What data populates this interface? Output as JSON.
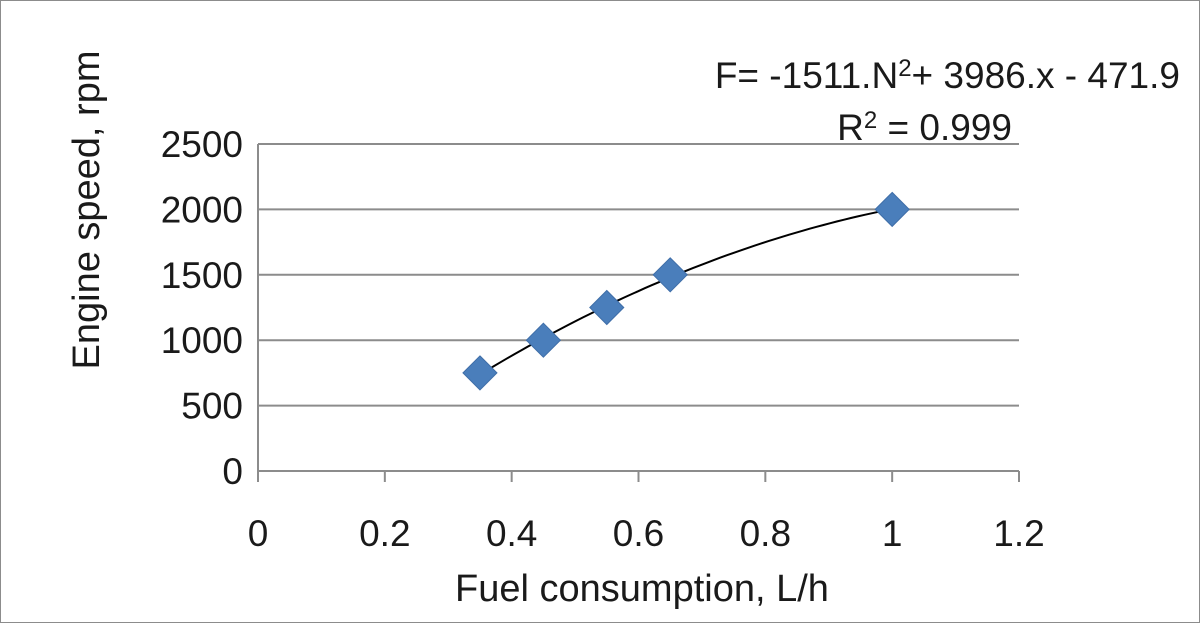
{
  "chart_data": {
    "type": "scatter",
    "xlabel": "Fuel consumption, L/h",
    "ylabel": "Engine speed, rpm",
    "xlim": [
      0,
      1.2
    ],
    "ylim": [
      0,
      2500
    ],
    "x_ticks": [
      "0",
      "0.2",
      "0.4",
      "0.6",
      "0.8",
      "1",
      "1.2"
    ],
    "y_ticks": [
      "0",
      "500",
      "1000",
      "1500",
      "2000",
      "2500"
    ],
    "grid": "horizontal",
    "series": [
      {
        "marker": "diamond",
        "color": "#4a7ebb",
        "points": [
          {
            "x": 0.35,
            "y": 750
          },
          {
            "x": 0.45,
            "y": 1000
          },
          {
            "x": 0.55,
            "y": 1250
          },
          {
            "x": 0.65,
            "y": 1500
          },
          {
            "x": 1.0,
            "y": 2000
          }
        ]
      }
    ],
    "trendline": {
      "type": "polynomial",
      "order": 2,
      "coefficients": [
        -1511,
        3986,
        -471.9
      ],
      "x_range": [
        0.35,
        1.0
      ],
      "color": "#000000"
    },
    "annotations": {
      "equation_prefix": "F= -1511.N",
      "equation_sup": "2",
      "equation_suffix": "+ 3986.x - 471.9",
      "r2_prefix": "R",
      "r2_sup": "2",
      "r2_suffix": " = 0.999"
    }
  }
}
